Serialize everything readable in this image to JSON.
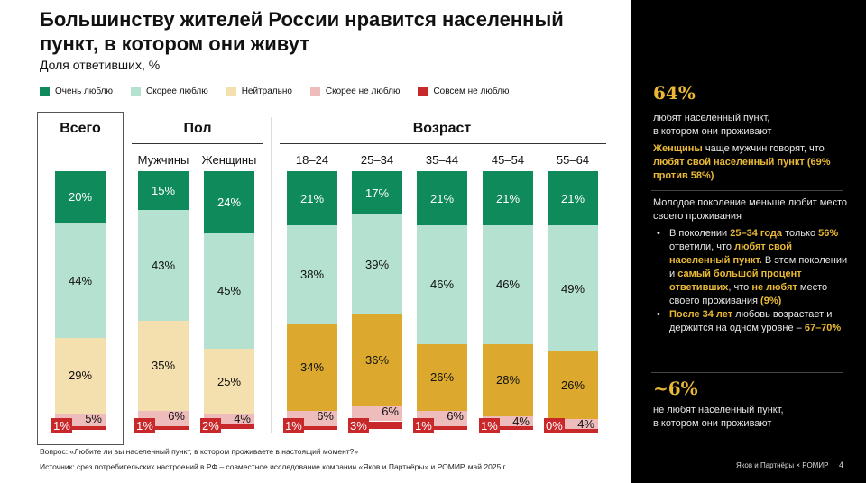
{
  "title": "Большинству жителей России нравится населенный пункт, в котором они живут",
  "subtitle": "Доля ответивших, %",
  "colors": {
    "very": "#0f8a5a",
    "rather": "#b4e1d0",
    "neutral_light": "#f4dfae",
    "neutral_dark": "#dca92e",
    "rather_not": "#efbcbc",
    "not_at_all": "#c8282a"
  },
  "chart_data": {
    "type": "bar",
    "stacked": true,
    "legend": [
      "Очень люблю",
      "Скорее люблю",
      "Нейтрально",
      "Скорее не люблю",
      "Совсем не люблю"
    ],
    "groups": [
      {
        "name": "Всего",
        "categories": [
          "Всего"
        ]
      },
      {
        "name": "Пол",
        "categories": [
          "Мужчины",
          "Женщины"
        ]
      },
      {
        "name": "Возраст",
        "categories": [
          "18–24",
          "25–34",
          "35–44",
          "45–54",
          "55–64"
        ]
      }
    ],
    "categories": [
      "Всего",
      "Мужчины",
      "Женщины",
      "18–24",
      "25–34",
      "35–44",
      "45–54",
      "55–64"
    ],
    "series": [
      {
        "name": "Очень люблю",
        "values": [
          20,
          15,
          24,
          21,
          17,
          21,
          21,
          21
        ]
      },
      {
        "name": "Скорее люблю",
        "values": [
          44,
          43,
          45,
          38,
          39,
          46,
          46,
          49
        ]
      },
      {
        "name": "Нейтрально",
        "values": [
          29,
          35,
          25,
          34,
          36,
          26,
          28,
          26
        ]
      },
      {
        "name": "Скорее не люблю",
        "values": [
          5,
          6,
          4,
          6,
          6,
          6,
          4,
          4
        ]
      },
      {
        "name": "Совсем не люблю",
        "values": [
          1,
          1,
          2,
          1,
          3,
          1,
          1,
          0
        ]
      }
    ]
  },
  "footer": {
    "question": "Вопрос: «Любите ли вы населенный пункт, в котором проживаете в настоящий момент?»",
    "source": "Источник: срез потребительских настроений в РФ – совместное исследование компании «Яков и Партнёры» и РОМИР, май 2025 г.",
    "brand": "Яков и Партнёры × РОМИР",
    "page": "4"
  },
  "panel": {
    "stat1": "64%",
    "stat1_text1": "любят населенный пункт,",
    "stat1_text2": "в котором они проживают",
    "p2": [
      "Женщины",
      " чаще мужчин говорят, что ",
      "любят свой населенный пункт (69% против 58%)"
    ],
    "p3": "Молодое поколение меньше любит место своего проживания",
    "b1": [
      "В поколении ",
      "25–34 года",
      " только ",
      "56%",
      " ответили, что ",
      "любят свой населенный пункт.",
      " В этом поколении и ",
      "самый большой процент ответивших",
      ", что ",
      "не любят",
      " место своего проживания ",
      "(9%)"
    ],
    "b2": [
      "После 34 лет",
      " любовь возрастает и держится на одном уровне – ",
      "67–70%"
    ],
    "stat2": "~6%",
    "stat2_text1": "не любят населенный пункт,",
    "stat2_text2": "в котором они проживают"
  }
}
